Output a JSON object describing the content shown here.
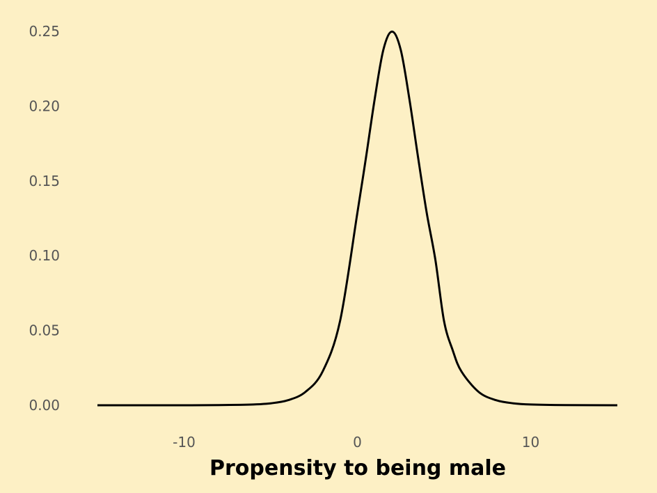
{
  "chart_data": {
    "type": "line",
    "title": "",
    "xlabel": "Propensity to being male",
    "ylabel": "",
    "xlim": [
      -15,
      15
    ],
    "ylim": [
      0,
      0.25
    ],
    "x_ticks": [
      -10,
      0,
      10
    ],
    "x_tick_labels": [
      "-10",
      "0",
      "10"
    ],
    "y_ticks": [
      0,
      0.05,
      0.1,
      0.15,
      0.2,
      0.25
    ],
    "y_tick_labels": [
      "0.00",
      "0.05",
      "0.10",
      "0.15",
      "0.20",
      "0.25"
    ],
    "grid": false,
    "legend": "none",
    "series": [
      {
        "x": [
          -15,
          -12,
          -10,
          -8,
          -6,
          -5,
          -4,
          -3,
          -2,
          -1,
          0,
          0.5,
          1,
          1.5,
          2,
          2.5,
          3,
          3.5,
          4,
          4.5,
          5,
          5.5,
          6,
          7,
          8,
          9,
          10,
          12,
          15
        ],
        "y": [
          0.0,
          0.0,
          0.0,
          0.0001,
          0.0005,
          0.0013,
          0.0034,
          0.0089,
          0.0227,
          0.0563,
          0.1287,
          0.1659,
          0.2048,
          0.2377,
          0.2498,
          0.2377,
          0.2048,
          0.1659,
          0.1287,
          0.0973,
          0.0563,
          0.0368,
          0.0227,
          0.0089,
          0.0034,
          0.0013,
          0.0005,
          0.0001,
          0.0
        ]
      }
    ],
    "colors": {
      "background": "#fdf0c5",
      "line": "#000000",
      "tick_text": "#555555",
      "axis_title": "#000000"
    }
  }
}
